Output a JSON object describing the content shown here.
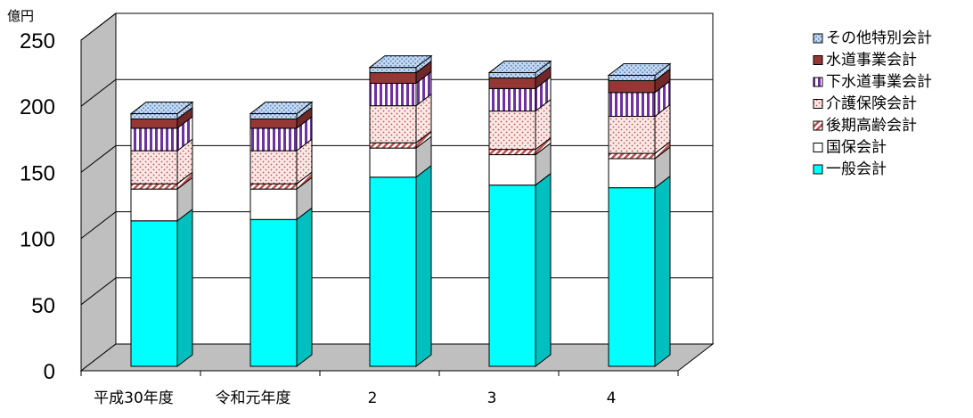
{
  "chart_data": {
    "type": "bar",
    "stacked": true,
    "three_d": true,
    "y_unit": "億円",
    "ylim": [
      0,
      250
    ],
    "y_ticks": [
      "0",
      "50",
      "100",
      "150",
      "200",
      "250"
    ],
    "categories": [
      "平成30年度",
      "令和元年度",
      "2",
      "3",
      "4"
    ],
    "legend_position": "right",
    "grid": true,
    "series": [
      {
        "name": "一般会計",
        "color": "#00ffff",
        "pattern": "solid",
        "values": [
          110,
          111,
          143,
          137,
          135
        ]
      },
      {
        "name": "国保会計",
        "color": "#ffffff",
        "pattern": "solid",
        "values": [
          24,
          23,
          22,
          23,
          22
        ]
      },
      {
        "name": "後期高齢会計",
        "color": "#c0504d",
        "pattern": "diagonal",
        "values": [
          4,
          4,
          4,
          4,
          4
        ]
      },
      {
        "name": "介護保険会計",
        "color": "#f2dcdb",
        "pattern": "dots",
        "values": [
          25,
          25,
          28,
          29,
          28
        ]
      },
      {
        "name": "下水道事業会計",
        "color": "#7030a0",
        "pattern": "vertical",
        "values": [
          17,
          17,
          17,
          17,
          18
        ]
      },
      {
        "name": "水道事業会計",
        "color": "#953735",
        "pattern": "solid",
        "values": [
          7,
          7,
          8,
          8,
          9
        ]
      },
      {
        "name": "その他特別会計",
        "color": "#4f81bd",
        "pattern": "dots-blue",
        "values": [
          4,
          4,
          4,
          4,
          4
        ]
      }
    ]
  }
}
